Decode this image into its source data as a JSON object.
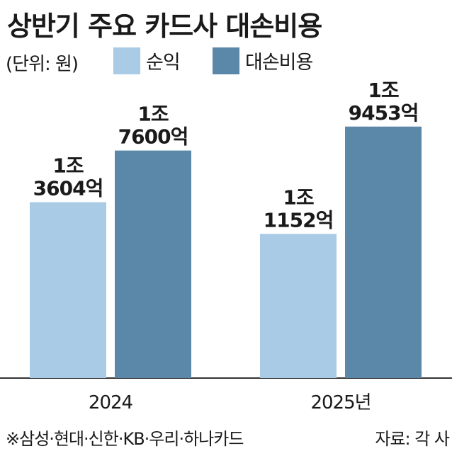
{
  "chart_data": {
    "type": "bar",
    "title": "상반기 주요 카드사 대손비용",
    "unit_label": "(단위: 원)",
    "categories": [
      "2024",
      "2025년"
    ],
    "series": [
      {
        "name": "순익",
        "color": "#a9cbe5",
        "values": [
          13604,
          11152
        ],
        "labels": [
          "1조\n3604억",
          "1조\n1152억"
        ]
      },
      {
        "name": "대손비용",
        "color": "#5b88a9",
        "values": [
          17600,
          19453
        ],
        "labels": [
          "1조\n7600억",
          "1조\n9453억"
        ]
      }
    ],
    "value_unit": "억원",
    "ylim": [
      0,
      23000
    ],
    "grid": false,
    "legend_position": "top"
  },
  "footnote": "※삼성·현대·신한·KB·우리·하나카드",
  "source": "자료: 각 사"
}
